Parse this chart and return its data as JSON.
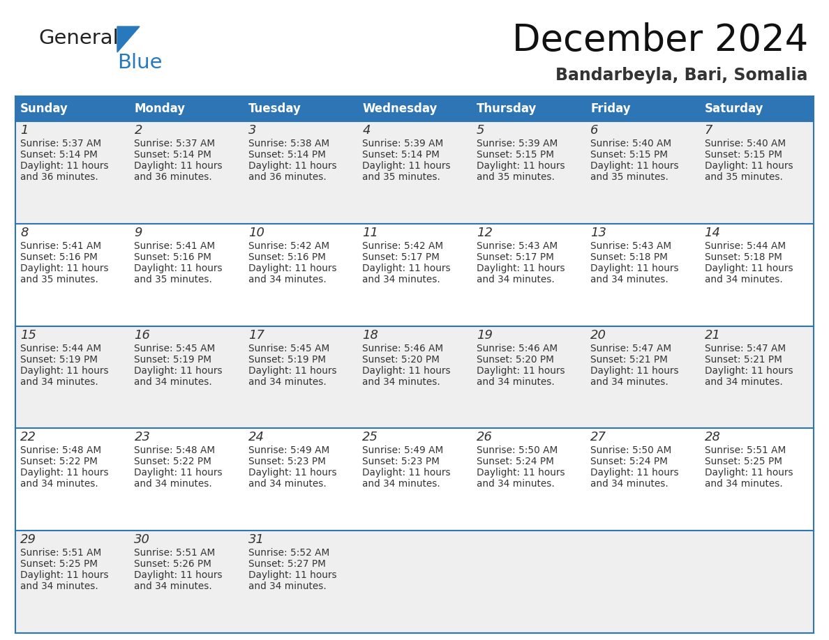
{
  "title": "December 2024",
  "subtitle": "Bandarbeyla, Bari, Somalia",
  "header_bg": "#2E75B6",
  "header_text_color": "#FFFFFF",
  "day_names": [
    "Sunday",
    "Monday",
    "Tuesday",
    "Wednesday",
    "Thursday",
    "Friday",
    "Saturday"
  ],
  "row_bg_odd": "#EFEFEF",
  "row_bg_even": "#FFFFFF",
  "cell_text_color": "#333333",
  "border_color": "#2E75B6",
  "days": [
    {
      "day": 1,
      "col": 0,
      "row": 0,
      "sunrise": "5:37 AM",
      "sunset": "5:14 PM",
      "daylight_hours": 11,
      "daylight_minutes": 36
    },
    {
      "day": 2,
      "col": 1,
      "row": 0,
      "sunrise": "5:37 AM",
      "sunset": "5:14 PM",
      "daylight_hours": 11,
      "daylight_minutes": 36
    },
    {
      "day": 3,
      "col": 2,
      "row": 0,
      "sunrise": "5:38 AM",
      "sunset": "5:14 PM",
      "daylight_hours": 11,
      "daylight_minutes": 36
    },
    {
      "day": 4,
      "col": 3,
      "row": 0,
      "sunrise": "5:39 AM",
      "sunset": "5:14 PM",
      "daylight_hours": 11,
      "daylight_minutes": 35
    },
    {
      "day": 5,
      "col": 4,
      "row": 0,
      "sunrise": "5:39 AM",
      "sunset": "5:15 PM",
      "daylight_hours": 11,
      "daylight_minutes": 35
    },
    {
      "day": 6,
      "col": 5,
      "row": 0,
      "sunrise": "5:40 AM",
      "sunset": "5:15 PM",
      "daylight_hours": 11,
      "daylight_minutes": 35
    },
    {
      "day": 7,
      "col": 6,
      "row": 0,
      "sunrise": "5:40 AM",
      "sunset": "5:15 PM",
      "daylight_hours": 11,
      "daylight_minutes": 35
    },
    {
      "day": 8,
      "col": 0,
      "row": 1,
      "sunrise": "5:41 AM",
      "sunset": "5:16 PM",
      "daylight_hours": 11,
      "daylight_minutes": 35
    },
    {
      "day": 9,
      "col": 1,
      "row": 1,
      "sunrise": "5:41 AM",
      "sunset": "5:16 PM",
      "daylight_hours": 11,
      "daylight_minutes": 35
    },
    {
      "day": 10,
      "col": 2,
      "row": 1,
      "sunrise": "5:42 AM",
      "sunset": "5:16 PM",
      "daylight_hours": 11,
      "daylight_minutes": 34
    },
    {
      "day": 11,
      "col": 3,
      "row": 1,
      "sunrise": "5:42 AM",
      "sunset": "5:17 PM",
      "daylight_hours": 11,
      "daylight_minutes": 34
    },
    {
      "day": 12,
      "col": 4,
      "row": 1,
      "sunrise": "5:43 AM",
      "sunset": "5:17 PM",
      "daylight_hours": 11,
      "daylight_minutes": 34
    },
    {
      "day": 13,
      "col": 5,
      "row": 1,
      "sunrise": "5:43 AM",
      "sunset": "5:18 PM",
      "daylight_hours": 11,
      "daylight_minutes": 34
    },
    {
      "day": 14,
      "col": 6,
      "row": 1,
      "sunrise": "5:44 AM",
      "sunset": "5:18 PM",
      "daylight_hours": 11,
      "daylight_minutes": 34
    },
    {
      "day": 15,
      "col": 0,
      "row": 2,
      "sunrise": "5:44 AM",
      "sunset": "5:19 PM",
      "daylight_hours": 11,
      "daylight_minutes": 34
    },
    {
      "day": 16,
      "col": 1,
      "row": 2,
      "sunrise": "5:45 AM",
      "sunset": "5:19 PM",
      "daylight_hours": 11,
      "daylight_minutes": 34
    },
    {
      "day": 17,
      "col": 2,
      "row": 2,
      "sunrise": "5:45 AM",
      "sunset": "5:19 PM",
      "daylight_hours": 11,
      "daylight_minutes": 34
    },
    {
      "day": 18,
      "col": 3,
      "row": 2,
      "sunrise": "5:46 AM",
      "sunset": "5:20 PM",
      "daylight_hours": 11,
      "daylight_minutes": 34
    },
    {
      "day": 19,
      "col": 4,
      "row": 2,
      "sunrise": "5:46 AM",
      "sunset": "5:20 PM",
      "daylight_hours": 11,
      "daylight_minutes": 34
    },
    {
      "day": 20,
      "col": 5,
      "row": 2,
      "sunrise": "5:47 AM",
      "sunset": "5:21 PM",
      "daylight_hours": 11,
      "daylight_minutes": 34
    },
    {
      "day": 21,
      "col": 6,
      "row": 2,
      "sunrise": "5:47 AM",
      "sunset": "5:21 PM",
      "daylight_hours": 11,
      "daylight_minutes": 34
    },
    {
      "day": 22,
      "col": 0,
      "row": 3,
      "sunrise": "5:48 AM",
      "sunset": "5:22 PM",
      "daylight_hours": 11,
      "daylight_minutes": 34
    },
    {
      "day": 23,
      "col": 1,
      "row": 3,
      "sunrise": "5:48 AM",
      "sunset": "5:22 PM",
      "daylight_hours": 11,
      "daylight_minutes": 34
    },
    {
      "day": 24,
      "col": 2,
      "row": 3,
      "sunrise": "5:49 AM",
      "sunset": "5:23 PM",
      "daylight_hours": 11,
      "daylight_minutes": 34
    },
    {
      "day": 25,
      "col": 3,
      "row": 3,
      "sunrise": "5:49 AM",
      "sunset": "5:23 PM",
      "daylight_hours": 11,
      "daylight_minutes": 34
    },
    {
      "day": 26,
      "col": 4,
      "row": 3,
      "sunrise": "5:50 AM",
      "sunset": "5:24 PM",
      "daylight_hours": 11,
      "daylight_minutes": 34
    },
    {
      "day": 27,
      "col": 5,
      "row": 3,
      "sunrise": "5:50 AM",
      "sunset": "5:24 PM",
      "daylight_hours": 11,
      "daylight_minutes": 34
    },
    {
      "day": 28,
      "col": 6,
      "row": 3,
      "sunrise": "5:51 AM",
      "sunset": "5:25 PM",
      "daylight_hours": 11,
      "daylight_minutes": 34
    },
    {
      "day": 29,
      "col": 0,
      "row": 4,
      "sunrise": "5:51 AM",
      "sunset": "5:25 PM",
      "daylight_hours": 11,
      "daylight_minutes": 34
    },
    {
      "day": 30,
      "col": 1,
      "row": 4,
      "sunrise": "5:51 AM",
      "sunset": "5:26 PM",
      "daylight_hours": 11,
      "daylight_minutes": 34
    },
    {
      "day": 31,
      "col": 2,
      "row": 4,
      "sunrise": "5:52 AM",
      "sunset": "5:27 PM",
      "daylight_hours": 11,
      "daylight_minutes": 34
    }
  ],
  "logo_color_general": "#222222",
  "logo_color_blue": "#2878BE"
}
